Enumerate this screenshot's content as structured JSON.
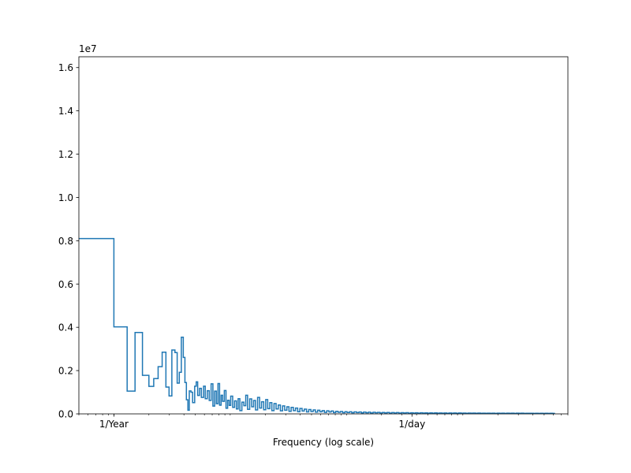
{
  "chart_data": {
    "type": "line",
    "step": true,
    "x_scale": "log",
    "xlabel": "Frequency (log scale)",
    "ylabel": "",
    "y_offset_label": "1e7",
    "xlim": [
      0.5,
      8000
    ],
    "ylim": [
      0,
      16500000
    ],
    "yticks": [
      0,
      2000000,
      4000000,
      6000000,
      8000000,
      10000000,
      12000000,
      14000000,
      16000000
    ],
    "ytick_labels": [
      "0.0",
      "0.2",
      "0.4",
      "0.6",
      "0.8",
      "1.0",
      "1.2",
      "1.4",
      "1.6"
    ],
    "xticks": [
      {
        "value": 1,
        "label": "1/Year"
      },
      {
        "value": 365.2524,
        "label": "1/day"
      }
    ],
    "grid": false,
    "line_color": "#1f77b4",
    "series": [
      {
        "name": "",
        "points": [
          [
            0.5,
            8100000
          ],
          [
            1,
            4020000
          ],
          [
            1.3,
            1050000
          ],
          [
            1.52,
            3760000
          ],
          [
            1.76,
            1780000
          ],
          [
            2.0,
            1270000
          ],
          [
            2.2,
            1630000
          ],
          [
            2.4,
            2180000
          ],
          [
            2.6,
            2850000
          ],
          [
            2.8,
            1240000
          ],
          [
            2.98,
            830000
          ],
          [
            3.15,
            2950000
          ],
          [
            3.35,
            2830000
          ],
          [
            3.5,
            1420000
          ],
          [
            3.65,
            1920000
          ],
          [
            3.8,
            3540000
          ],
          [
            3.95,
            2610000
          ],
          [
            4.08,
            1450000
          ],
          [
            4.2,
            650000
          ],
          [
            4.33,
            170000
          ],
          [
            4.45,
            1060000
          ],
          [
            4.6,
            1000000
          ],
          [
            4.75,
            520000
          ],
          [
            4.95,
            1280000
          ],
          [
            5.1,
            1480000
          ],
          [
            5.25,
            850000
          ],
          [
            5.45,
            1180000
          ],
          [
            5.65,
            760000
          ],
          [
            5.9,
            1280000
          ],
          [
            6.1,
            700000
          ],
          [
            6.35,
            1070000
          ],
          [
            6.6,
            620000
          ],
          [
            6.85,
            1390000
          ],
          [
            7.1,
            360000
          ],
          [
            7.35,
            1050000
          ],
          [
            7.6,
            470000
          ],
          [
            7.85,
            1400000
          ],
          [
            8.1,
            400000
          ],
          [
            8.35,
            860000
          ],
          [
            8.6,
            580000
          ],
          [
            8.9,
            1080000
          ],
          [
            9.2,
            260000
          ],
          [
            9.5,
            630000
          ],
          [
            9.8,
            390000
          ],
          [
            10.1,
            820000
          ],
          [
            10.5,
            300000
          ],
          [
            10.9,
            600000
          ],
          [
            11.3,
            230000
          ],
          [
            11.7,
            700000
          ],
          [
            12.1,
            150000
          ],
          [
            12.6,
            540000
          ],
          [
            13.1,
            380000
          ],
          [
            13.6,
            860000
          ],
          [
            14.1,
            210000
          ],
          [
            14.7,
            690000
          ],
          [
            15.3,
            330000
          ],
          [
            15.9,
            620000
          ],
          [
            16.5,
            180000
          ],
          [
            17.2,
            760000
          ],
          [
            17.9,
            270000
          ],
          [
            18.6,
            560000
          ],
          [
            19.4,
            190000
          ],
          [
            20.2,
            660000
          ],
          [
            21.0,
            240000
          ],
          [
            21.9,
            520000
          ],
          [
            22.8,
            150000
          ],
          [
            23.8,
            480000
          ],
          [
            24.8,
            230000
          ],
          [
            25.9,
            410000
          ],
          [
            27.0,
            140000
          ],
          [
            28.2,
            370000
          ],
          [
            29.4,
            170000
          ],
          [
            30.7,
            330000
          ],
          [
            32.0,
            120000
          ],
          [
            33.4,
            300000
          ],
          [
            34.9,
            150000
          ],
          [
            36.4,
            270000
          ],
          [
            38.0,
            100000
          ],
          [
            39.7,
            250000
          ],
          [
            41.5,
            130000
          ],
          [
            43.3,
            220000
          ],
          [
            45.3,
            90000
          ],
          [
            47.3,
            200000
          ],
          [
            49.4,
            110000
          ],
          [
            51.7,
            180000
          ],
          [
            54.0,
            80000
          ],
          [
            56.5,
            170000
          ],
          [
            59.0,
            95000
          ],
          [
            61.7,
            150000
          ],
          [
            64.5,
            70000
          ],
          [
            67.5,
            140000
          ],
          [
            70.6,
            85000
          ],
          [
            73.8,
            130000
          ],
          [
            77.2,
            60000
          ],
          [
            80.8,
            120000
          ],
          [
            84.5,
            75000
          ],
          [
            88.5,
            110000
          ],
          [
            92.6,
            55000
          ],
          [
            96.9,
            100000
          ],
          [
            101,
            65000
          ],
          [
            106,
            95000
          ],
          [
            111,
            50000
          ],
          [
            116,
            90000
          ],
          [
            122,
            58000
          ],
          [
            128,
            85000
          ],
          [
            134,
            45000
          ],
          [
            140,
            80000
          ],
          [
            147,
            52000
          ],
          [
            154,
            76000
          ],
          [
            161,
            42000
          ],
          [
            169,
            72000
          ],
          [
            177,
            48000
          ],
          [
            185,
            68000
          ],
          [
            194,
            40000
          ],
          [
            203,
            65000
          ],
          [
            213,
            45000
          ],
          [
            223,
            62000
          ],
          [
            234,
            38000
          ],
          [
            245,
            60000
          ],
          [
            257,
            42000
          ],
          [
            269,
            58000
          ],
          [
            282,
            36000
          ],
          [
            296,
            56000
          ],
          [
            310,
            40000
          ],
          [
            325,
            54000
          ],
          [
            341,
            34000
          ],
          [
            357,
            52000
          ],
          [
            374,
            38000
          ],
          [
            392,
            50000
          ],
          [
            411,
            32000
          ],
          [
            431,
            48000
          ],
          [
            452,
            36000
          ],
          [
            474,
            47000
          ],
          [
            497,
            31000
          ],
          [
            521,
            45000
          ],
          [
            546,
            34000
          ],
          [
            572,
            44000
          ],
          [
            600,
            30000
          ],
          [
            629,
            43000
          ],
          [
            660,
            33000
          ],
          [
            692,
            42000
          ],
          [
            726,
            29000
          ],
          [
            761,
            41000
          ],
          [
            798,
            32000
          ],
          [
            837,
            40000
          ],
          [
            878,
            28000
          ],
          [
            921,
            39000
          ],
          [
            966,
            31000
          ],
          [
            1013,
            38000
          ],
          [
            1062,
            27000
          ],
          [
            1114,
            37000
          ],
          [
            1168,
            30000
          ],
          [
            1225,
            36000
          ],
          [
            1285,
            26000
          ],
          [
            1348,
            35000
          ],
          [
            1414,
            29000
          ],
          [
            1483,
            34000
          ],
          [
            1555,
            25000
          ],
          [
            1631,
            33000
          ],
          [
            1711,
            28000
          ],
          [
            1794,
            33000
          ],
          [
            1882,
            24000
          ],
          [
            1974,
            32000
          ],
          [
            2070,
            27000
          ],
          [
            2171,
            32000
          ],
          [
            2277,
            23000
          ],
          [
            2388,
            31000
          ],
          [
            2505,
            26000
          ],
          [
            2627,
            31000
          ],
          [
            2755,
            23000
          ],
          [
            2890,
            30000
          ],
          [
            3031,
            25000
          ],
          [
            3179,
            30000
          ],
          [
            3334,
            22000
          ],
          [
            3497,
            29000
          ],
          [
            3668,
            25000
          ],
          [
            3847,
            29000
          ],
          [
            4035,
            22000
          ],
          [
            4232,
            28000
          ],
          [
            4439,
            24000
          ],
          [
            4656,
            28000
          ],
          [
            4883,
            21000
          ],
          [
            5122,
            27000
          ],
          [
            5372,
            23000
          ],
          [
            5635,
            27000
          ],
          [
            5910,
            21000
          ]
        ],
        "x_end": 6199
      }
    ]
  }
}
